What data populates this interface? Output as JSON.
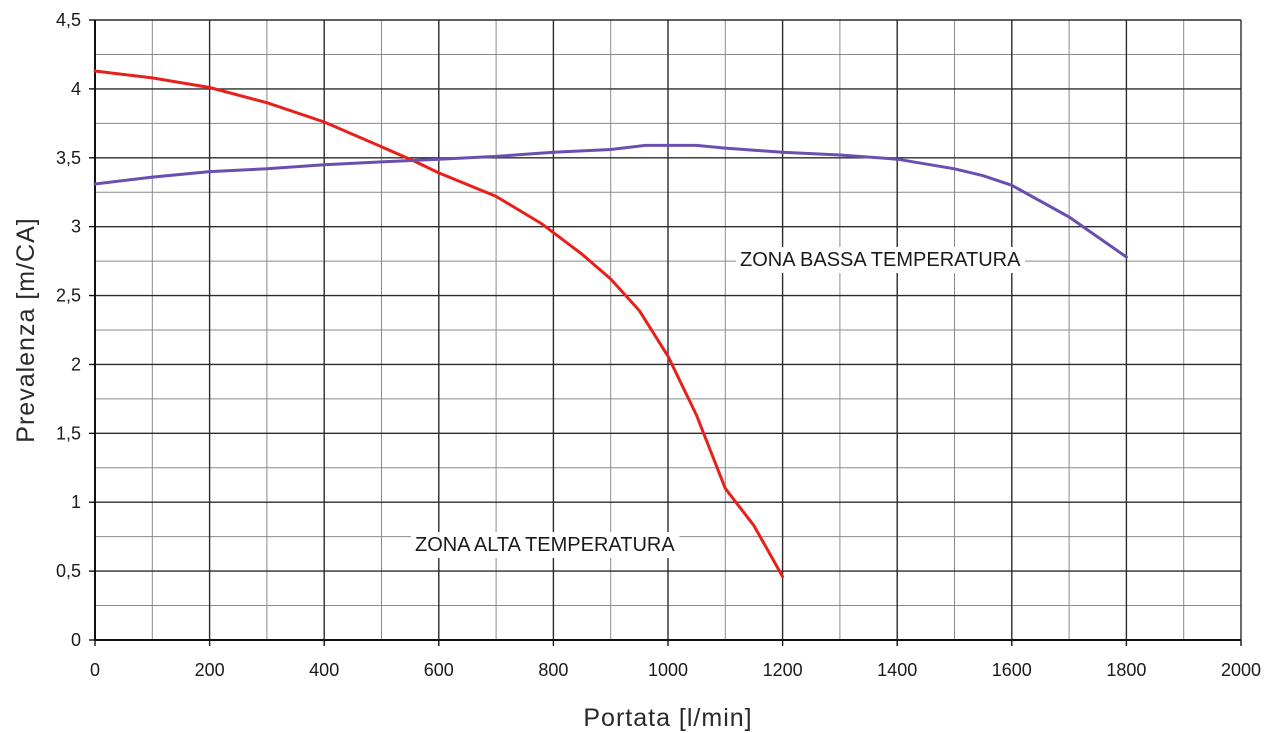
{
  "chart_data": {
    "type": "line",
    "title": "",
    "xlabel": "Portata [l/min]",
    "ylabel": "Prevalenza [m/CA]",
    "xlim": [
      0,
      2000
    ],
    "ylim": [
      0,
      4.5
    ],
    "x_ticks": [
      0,
      200,
      400,
      600,
      800,
      1000,
      1200,
      1400,
      1600,
      1800,
      2000
    ],
    "x_tick_labels": [
      "0",
      "200",
      "400",
      "600",
      "800",
      "1000",
      "1200",
      "1400",
      "1600",
      "1800",
      "2000"
    ],
    "y_ticks": [
      0,
      0.5,
      1,
      1.5,
      2,
      2.5,
      3,
      3.5,
      4,
      4.5
    ],
    "y_tick_labels": [
      "0",
      "0,5",
      "1",
      "1,5",
      "2",
      "2,5",
      "3",
      "3,5",
      "4",
      "4,5"
    ],
    "grid": true,
    "series": [
      {
        "name": "ZONA ALTA TEMPERATURA",
        "color": "#e8201c",
        "points": [
          [
            0,
            4.13
          ],
          [
            100,
            4.08
          ],
          [
            200,
            4.01
          ],
          [
            300,
            3.9
          ],
          [
            400,
            3.76
          ],
          [
            500,
            3.58
          ],
          [
            560,
            3.47
          ],
          [
            600,
            3.39
          ],
          [
            700,
            3.22
          ],
          [
            780,
            3.02
          ],
          [
            850,
            2.8
          ],
          [
            900,
            2.62
          ],
          [
            950,
            2.39
          ],
          [
            1000,
            2.06
          ],
          [
            1050,
            1.63
          ],
          [
            1100,
            1.1
          ],
          [
            1150,
            0.83
          ],
          [
            1200,
            0.46
          ]
        ]
      },
      {
        "name": "ZONA BASSA TEMPERATURA",
        "color": "#6a4fb0",
        "points": [
          [
            0,
            3.31
          ],
          [
            100,
            3.36
          ],
          [
            200,
            3.4
          ],
          [
            300,
            3.42
          ],
          [
            400,
            3.45
          ],
          [
            500,
            3.47
          ],
          [
            600,
            3.49
          ],
          [
            700,
            3.51
          ],
          [
            800,
            3.54
          ],
          [
            900,
            3.56
          ],
          [
            960,
            3.59
          ],
          [
            1050,
            3.59
          ],
          [
            1100,
            3.57
          ],
          [
            1200,
            3.54
          ],
          [
            1300,
            3.52
          ],
          [
            1400,
            3.49
          ],
          [
            1500,
            3.42
          ],
          [
            1550,
            3.37
          ],
          [
            1600,
            3.3
          ],
          [
            1700,
            3.07
          ],
          [
            1800,
            2.78
          ]
        ]
      }
    ],
    "annotations": [
      {
        "text": "ZONA BASSA TEMPERATURA",
        "series": "ZONA BASSA TEMPERATURA"
      },
      {
        "text": "ZONA ALTA TEMPERATURA",
        "series": "ZONA ALTA TEMPERATURA"
      }
    ]
  }
}
